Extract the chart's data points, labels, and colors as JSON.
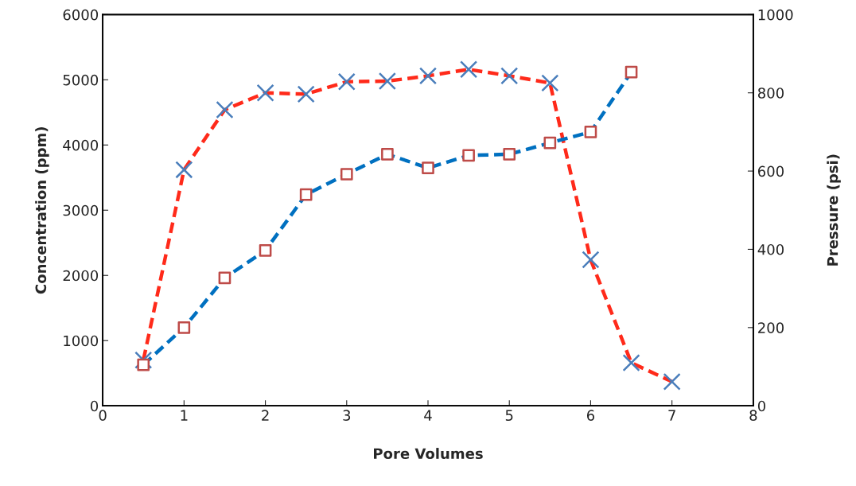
{
  "chart_data": {
    "type": "line",
    "xlabel": "Pore Volumes",
    "ylabel": "Concentration (ppm)",
    "y2label": "Pressure (psi)",
    "xlim": [
      0,
      8
    ],
    "xticks": [
      0,
      1,
      2,
      3,
      4,
      5,
      6,
      7,
      8
    ],
    "ylim": [
      0,
      6000
    ],
    "yticks": [
      0,
      1000,
      2000,
      3000,
      4000,
      5000,
      6000
    ],
    "y2lim": [
      0,
      1000
    ],
    "y2ticks": [
      0,
      200,
      400,
      600,
      800,
      1000
    ],
    "grid": false,
    "line_style": "dashed",
    "series": [
      {
        "color": "#ff2a1a",
        "marker": "cross",
        "colors": [
          "#4a7ebb",
          "#4a7ebb",
          "#4a7ebb",
          "#4a7ebb",
          "#4a7ebb",
          "#4a7ebb",
          "#4a7ebb",
          "#4a7ebb",
          "#4a7ebb",
          "#4a7ebb",
          "#4a7ebb",
          "#4a7ebb",
          "#4a7ebb",
          "#4a7ebb"
        ],
        "x": [
          0.5,
          1,
          1.5,
          2,
          2.5,
          3,
          3.5,
          4,
          4.5,
          5,
          5.5,
          6,
          6.5,
          7
        ],
        "values": [
          700,
          3620,
          4540,
          4800,
          4780,
          4970,
          4980,
          5060,
          5160,
          5060,
          4950,
          2240,
          660,
          370
        ]
      },
      {
        "axis": "y2",
        "color": "#0070c0",
        "marker": "square",
        "colors": [
          "#be4b48",
          "#be4b48",
          "#be4b48",
          "#be4b48",
          "#be4b48",
          "#be4b48",
          "#be4b48",
          "#be4b48",
          "#be4b48",
          "#be4b48",
          "#be4b48",
          "#be4b48",
          "#be4b48"
        ],
        "x": [
          0.5,
          1,
          1.5,
          2,
          2.5,
          3,
          3.5,
          4,
          4.5,
          5,
          5.5,
          6,
          6.5
        ],
        "values": [
          105,
          200,
          327,
          397,
          540,
          592,
          643,
          608,
          640,
          643,
          672,
          700,
          853
        ]
      }
    ]
  }
}
